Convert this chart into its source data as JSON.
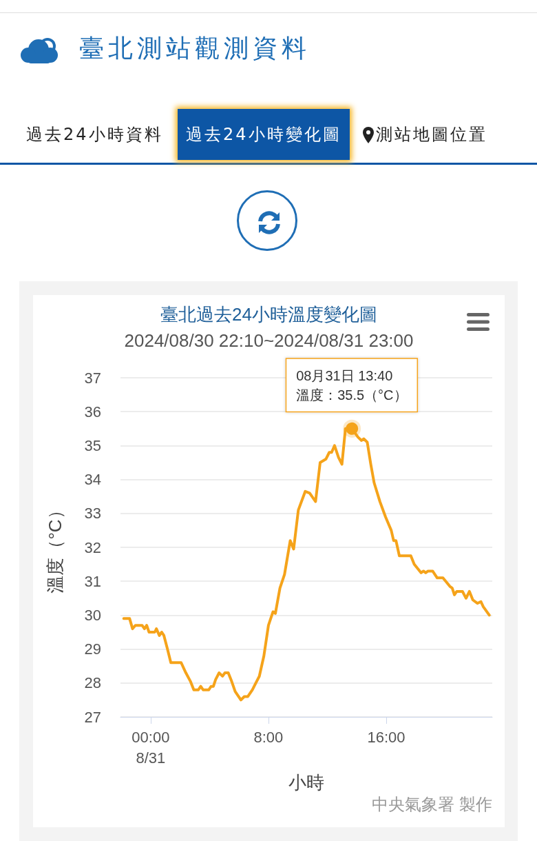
{
  "chart_data": {
    "type": "line",
    "title": "臺北過去24小時溫度變化圖",
    "subtitle": "2024/08/30 22:10~2024/08/31 23:00",
    "xlabel": "小時",
    "ylabel": "溫度（°C）",
    "annotations": [
      "臺北測站觀測資料",
      "過去24小時資料",
      "過去24小時變化圖",
      "測站地圖位置",
      "中央氣象署 製作",
      {
        "text": "08月31日 13:40\n溫度：35.5（°C）",
        "x": 13.67,
        "y": 35.5
      }
    ],
    "xlim": [
      -2.05,
      23.2
    ],
    "xticks": [
      {
        "value": 0,
        "label": "00:00\n8/31"
      },
      {
        "value": 8,
        "label": "8:00"
      },
      {
        "value": 16,
        "label": "16:00"
      }
    ],
    "ylim": [
      27,
      37
    ],
    "yticks": [
      27,
      28,
      29,
      30,
      31,
      32,
      33,
      34,
      35,
      36,
      37
    ],
    "grid": "y",
    "marker": "none",
    "line_style": "solid",
    "series": [
      {
        "color": "#f5a31a",
        "x": [
          -1.83,
          -1.43,
          -1.23,
          -1.04,
          -0.58,
          -0.42,
          -0.27,
          -0.11,
          0.28,
          0.39,
          0.59,
          0.75,
          0.9,
          1.14,
          1.37,
          2.07,
          2.39,
          2.7,
          2.93,
          3.24,
          3.4,
          3.56,
          3.95,
          4.1,
          4.26,
          4.41,
          4.65,
          4.88,
          5.04,
          5.27,
          5.5,
          5.74,
          6.13,
          6.36,
          6.6,
          6.91,
          7.14,
          7.38,
          7.69,
          8.0,
          8.31,
          8.47,
          8.78,
          9.09,
          9.48,
          9.71,
          10.03,
          10.5,
          10.8,
          11.2,
          11.51,
          11.9,
          12.13,
          12.29,
          12.49,
          12.76,
          12.99,
          13.23,
          13.67,
          14.08,
          14.32,
          14.47,
          14.71,
          14.95,
          15.18,
          15.57,
          15.95,
          16.34,
          16.5,
          16.66,
          16.89,
          17.67,
          17.9,
          18.37,
          18.53,
          18.68,
          18.84,
          19.15,
          19.46,
          19.85,
          20.32,
          20.48,
          20.63,
          20.79,
          21.18,
          21.42,
          21.65,
          21.88,
          22.19,
          22.43,
          22.59,
          23.0
        ],
        "values": [
          29.9,
          29.9,
          29.6,
          29.7,
          29.7,
          29.6,
          29.7,
          29.5,
          29.5,
          29.6,
          29.4,
          29.5,
          29.4,
          29.0,
          28.6,
          28.6,
          28.3,
          28.05,
          27.8,
          27.8,
          27.9,
          27.8,
          27.8,
          27.9,
          27.9,
          28.1,
          28.3,
          28.2,
          28.3,
          28.3,
          28.05,
          27.75,
          27.5,
          27.6,
          27.6,
          27.8,
          28.0,
          28.2,
          28.8,
          29.7,
          30.1,
          30.05,
          30.8,
          31.2,
          32.2,
          31.95,
          33.1,
          33.65,
          33.6,
          33.35,
          34.5,
          34.6,
          34.8,
          34.8,
          35.0,
          34.65,
          34.45,
          35.5,
          35.5,
          35.25,
          35.15,
          35.2,
          35.1,
          34.45,
          33.9,
          33.35,
          32.9,
          32.5,
          32.2,
          32.2,
          31.75,
          31.75,
          31.5,
          31.25,
          31.3,
          31.25,
          31.3,
          31.3,
          31.1,
          31.1,
          30.85,
          30.8,
          30.6,
          30.7,
          30.7,
          30.5,
          30.7,
          30.45,
          30.35,
          30.4,
          30.25,
          30.0
        ]
      }
    ]
  }
}
